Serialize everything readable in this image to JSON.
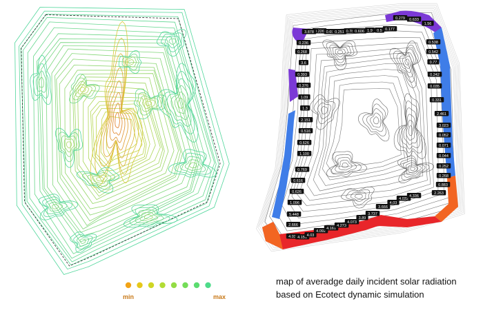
{
  "caption": {
    "line1": "map of averadge daily incident solar radiation",
    "line2": "based on Ecotect dynamic simulation"
  },
  "legend": {
    "min_label": "min",
    "max_label": "max",
    "colors": [
      "#f2a316",
      "#e6c81a",
      "#cfd624",
      "#b2dc35",
      "#93dc45",
      "#74dd58",
      "#5cdc70",
      "#4edb8a"
    ]
  },
  "colors": {
    "contour_inner": "#e2601c",
    "contour_mid": "#d8d63a",
    "contour_outer": "#4fd69a",
    "edge_purple": "#7b39d6",
    "edge_blue": "#3f7de8",
    "edge_orange": "#f26522",
    "edge_red": "#e8262a"
  },
  "radiation_labels": [
    "0.178",
    "0.226",
    "0.69",
    "0.251",
    "0.78",
    "0.606",
    "1.9",
    "0.5",
    "0.177",
    "0.279",
    "0.633",
    "1.56",
    "0.236",
    "0.268",
    "3.6",
    "0.393",
    "0.376",
    "1.09",
    "1.3",
    "2.151",
    "0.516",
    "0.626",
    "1.100",
    "0.769",
    "0.616",
    "0.626",
    "1.096",
    "5.448",
    "2.666",
    "4.031",
    "4.151",
    "4.03",
    "4.092",
    "4.161",
    "4.273",
    "4.073",
    "3.89",
    "3.737",
    "3.666",
    "4.03",
    "4.032",
    "4.336",
    "0.538",
    "0.542",
    "0.77",
    "0.242",
    "0.035",
    "0.331",
    "2.461",
    "3.023",
    "0.052",
    "0.071",
    "0.044",
    "0.252",
    "0.268",
    "0.883",
    "2.263",
    "3.878"
  ]
}
